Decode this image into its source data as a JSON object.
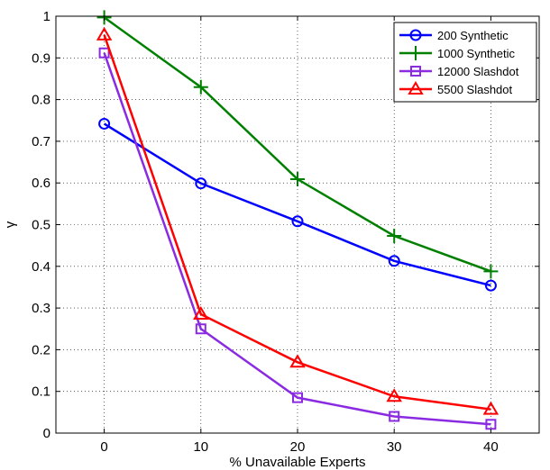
{
  "chart_data": {
    "type": "line",
    "title": "",
    "xlabel": "% Unavailable Experts",
    "ylabel": "γ",
    "x": [
      0,
      10,
      20,
      30,
      40
    ],
    "xlim": [
      -5,
      45
    ],
    "ylim": [
      0,
      1
    ],
    "xticks": [
      "0",
      "10",
      "20",
      "30",
      "40"
    ],
    "yticks": [
      "0",
      "0.1",
      "0.2",
      "0.3",
      "0.4",
      "0.5",
      "0.6",
      "0.7",
      "0.8",
      "0.9",
      "1"
    ],
    "grid": true,
    "legend_position": "top-right",
    "series": [
      {
        "name": "200 Synthetic",
        "values": [
          0.742,
          0.599,
          0.508,
          0.413,
          0.354
        ],
        "color": "#0000ff",
        "marker": "circle"
      },
      {
        "name": "1000 Synthetic",
        "values": [
          0.997,
          0.83,
          0.609,
          0.473,
          0.388
        ],
        "color": "#008000",
        "marker": "plus"
      },
      {
        "name": "12000 Slashdot",
        "values": [
          0.912,
          0.25,
          0.085,
          0.04,
          0.021
        ],
        "color": "#8a2be2",
        "marker": "square"
      },
      {
        "name": "5500 Slashdot",
        "values": [
          0.955,
          0.285,
          0.17,
          0.088,
          0.057
        ],
        "color": "#ff0000",
        "marker": "triangle"
      }
    ]
  }
}
